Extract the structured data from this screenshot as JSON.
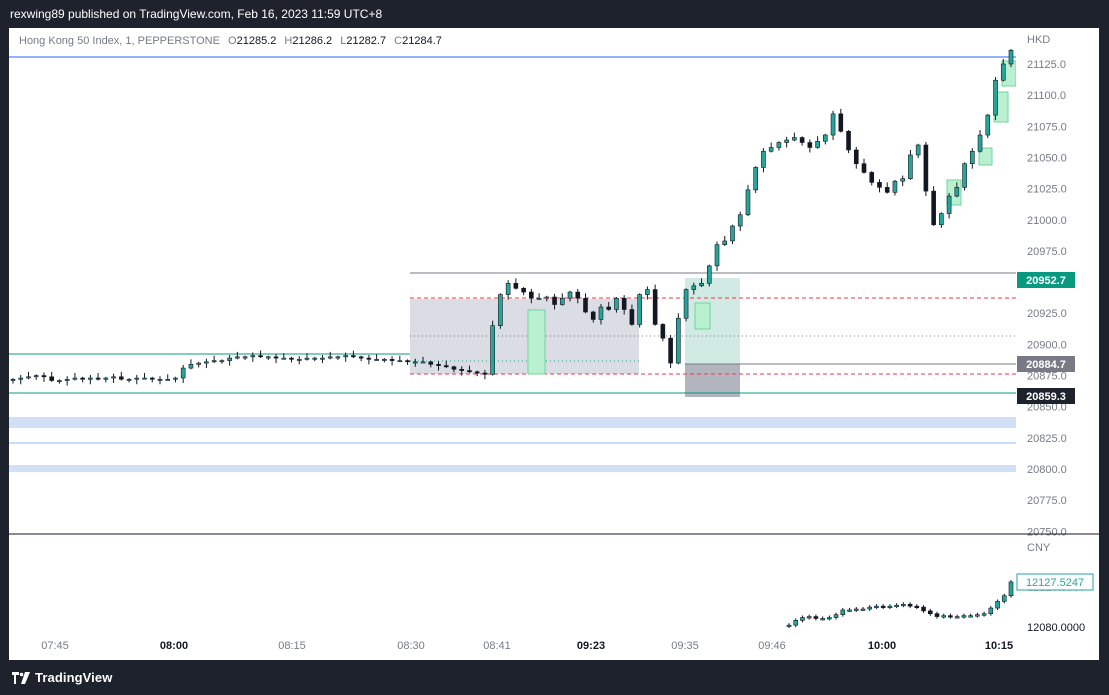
{
  "header": {
    "publisher_text": "rexwing89 published on TradingView.com, Feb 16, 2023 11:59 UTC+8"
  },
  "legend": {
    "symbol": "Hong Kong 50 Index, 1, PEPPERSTONE",
    "open_label": "O",
    "open": "21285.2",
    "high_label": "H",
    "high": "21286.2",
    "low_label": "L",
    "low": "21282.7",
    "close_label": "C",
    "close": "21284.7"
  },
  "price_axis": {
    "currency": "HKD",
    "ticks": [
      "21125.0",
      "21100.0",
      "21075.0",
      "21050.0",
      "21025.0",
      "21000.0",
      "20975.0",
      "20925.0",
      "20900.0",
      "20875.0",
      "20850.0",
      "20825.0",
      "20800.0",
      "20775.0",
      "20750.0"
    ],
    "tag_green": "20952.7",
    "tag_gray": "20884.7",
    "tag_dark": "20859.3"
  },
  "sub_axis": {
    "currency": "CNY",
    "value_tag": "12127.5247",
    "tick": "12080.0000",
    "hidden_tick": "12120.0000"
  },
  "time_axis": {
    "labels": [
      "07:45",
      "08:00",
      "08:15",
      "08:30",
      "08:41",
      "09:23",
      "09:35",
      "09:46",
      "10:00",
      "10:15"
    ]
  },
  "colors": {
    "bull": "#26a69a",
    "bear": "#131722",
    "accent_green": "#089981",
    "zone_blue": "#d1e0f7",
    "line_blue": "#2962ff",
    "dashed_red": "#f23645"
  },
  "footer": {
    "brand": "TradingView"
  },
  "chart_data": {
    "type": "candlestick",
    "instrument": "Hong Kong 50 Index, 1, PEPPERSTONE",
    "currency": "HKD",
    "ylim": [
      20750,
      21140
    ],
    "ohlc_last": {
      "open": 21285.2,
      "high": 21286.2,
      "low": 21282.7,
      "close": 21284.7
    },
    "levels": [
      20952.7,
      20884.7,
      20859.3
    ],
    "x_labels": [
      "07:45",
      "08:00",
      "08:15",
      "08:30",
      "08:41",
      "09:23",
      "09:35",
      "09:46",
      "10:00",
      "10:15"
    ],
    "closes": [
      20872,
      20873,
      20874,
      20875,
      20874,
      20871,
      20871,
      20872,
      20873,
      20872,
      20873,
      20872,
      20873,
      20874,
      20872,
      20872,
      20873,
      20873,
      20872,
      20872,
      20872,
      20873,
      20881,
      20884,
      20885,
      20886,
      20887,
      20887,
      20889,
      20890,
      20890,
      20891,
      20890,
      20890,
      20889,
      20889,
      20888,
      20888,
      20889,
      20889,
      20889,
      20890,
      20890,
      20891,
      20890,
      20889,
      20888,
      20888,
      20888,
      20887,
      20887,
      20886,
      20886,
      20886,
      20884,
      20883,
      20882,
      20880,
      20879,
      20878,
      20877,
      20876,
      20915,
      20940,
      20949,
      20945,
      20942,
      20937,
      20937,
      20938,
      20932,
      20937,
      20942,
      20937,
      20926,
      20920,
      20930,
      20928,
      20937,
      20928,
      20916,
      20940,
      20944,
      20916,
      20905,
      20885,
      20921,
      20944,
      20947,
      20949,
      20963,
      20980,
      20983,
      20995,
      21004,
      21024,
      21042,
      21055,
      21058,
      21062,
      21064,
      21066,
      21062,
      21058,
      21063,
      21068,
      21085,
      21071,
      21056,
      21045,
      21038,
      21030,
      21026,
      21022,
      21031,
      21033,
      21052,
      21060,
      21023,
      20996,
      21005,
      21019,
      21026,
      21045,
      21055,
      21068,
      21084,
      21112,
      21125,
      21136
    ],
    "sub_series": {
      "currency": "CNY",
      "x_labels": [
        "09:46",
        "10:00",
        "10:15"
      ],
      "values": [
        12082,
        12087,
        12090,
        12091,
        12089,
        12089,
        12090,
        12093,
        12098,
        12098,
        12099,
        12099,
        12101,
        12102,
        12101,
        12102,
        12103,
        12104,
        12102,
        12101,
        12097,
        12094,
        12091,
        12092,
        12091,
        12091,
        12092,
        12092,
        12093,
        12094,
        12100,
        12107,
        12113,
        12127.5
      ]
    }
  }
}
